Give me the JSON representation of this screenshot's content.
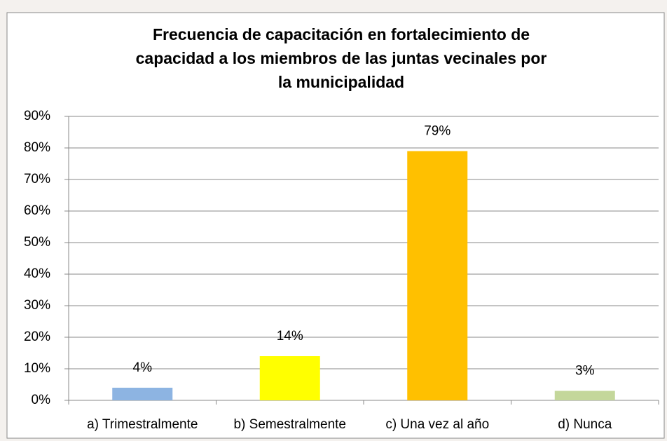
{
  "chart_data": {
    "type": "bar",
    "title": [
      "Frecuencia de capacitación en fortalecimiento de",
      "capacidad a los miembros de las juntas vecinales por",
      "la municipalidad"
    ],
    "categories": [
      "a) Trimestralmente",
      "b) Semestralmente",
      "c) Una vez al año",
      "d) Nunca"
    ],
    "values": [
      4,
      14,
      79,
      3
    ],
    "value_labels": [
      "4%",
      "14%",
      "79%",
      "3%"
    ],
    "colors": [
      "#8db4e2",
      "#ffff00",
      "#ffc000",
      "#c4d79b"
    ],
    "ylim": [
      0,
      90
    ],
    "yticks": [
      {
        "value": 0,
        "label": "0%"
      },
      {
        "value": 10,
        "label": "10%"
      },
      {
        "value": 20,
        "label": "20%"
      },
      {
        "value": 30,
        "label": "30%"
      },
      {
        "value": 40,
        "label": "40%"
      },
      {
        "value": 50,
        "label": "50%"
      },
      {
        "value": 60,
        "label": "60%"
      },
      {
        "value": 70,
        "label": "70%"
      },
      {
        "value": 80,
        "label": "80%"
      },
      {
        "value": 90,
        "label": "90%"
      }
    ],
    "grid": true
  }
}
